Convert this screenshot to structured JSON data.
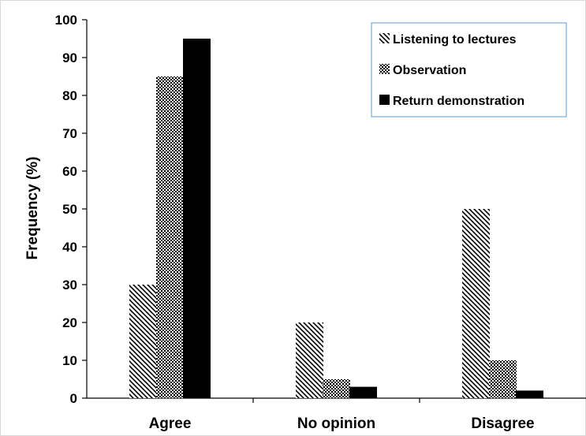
{
  "chart_data": {
    "type": "bar",
    "title": "",
    "xlabel": "",
    "ylabel": "Frequency (%)",
    "ylim": [
      0,
      100
    ],
    "yticks": [
      0,
      10,
      20,
      30,
      40,
      50,
      60,
      70,
      80,
      90,
      100
    ],
    "categories": [
      "Agree",
      "No opinion",
      "Disagree"
    ],
    "series": [
      {
        "name": "Listening to lectures",
        "values": [
          30,
          20,
          50
        ],
        "pattern": "diagonal-hatch",
        "color": "#000000"
      },
      {
        "name": "Observation",
        "values": [
          85,
          5,
          10
        ],
        "pattern": "checkerboard",
        "color": "#000000"
      },
      {
        "name": "Return demonstration",
        "values": [
          95,
          3,
          2
        ],
        "pattern": "solid",
        "color": "#000000"
      }
    ],
    "legend_position": "top-right",
    "grid": false
  }
}
